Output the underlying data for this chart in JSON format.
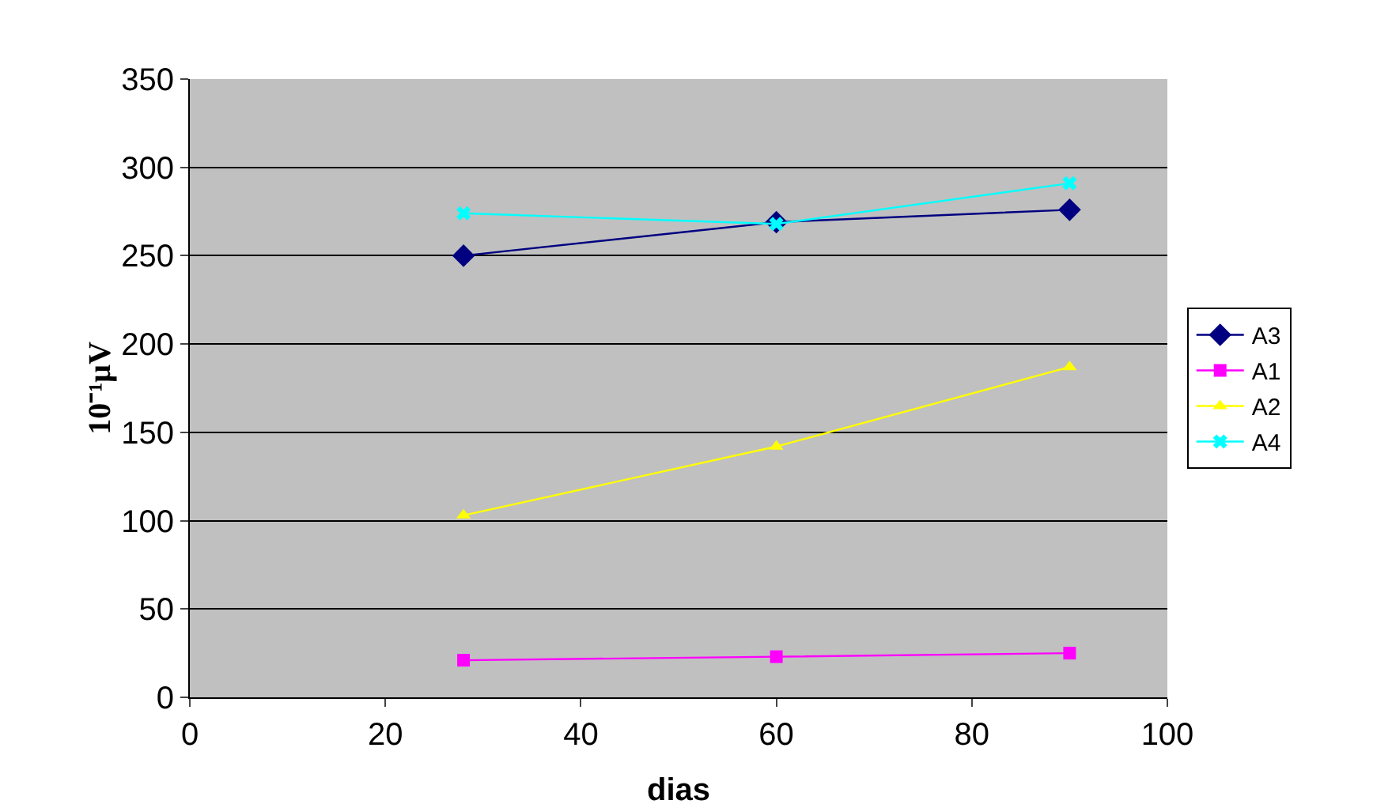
{
  "chart_data": {
    "type": "line",
    "xlabel": "dias",
    "ylabel": "10⁻¹μV",
    "xlim": [
      0,
      100
    ],
    "xticks": [
      0,
      20,
      40,
      60,
      80,
      100
    ],
    "ylim": [
      0,
      350
    ],
    "yticks": [
      0,
      50,
      100,
      150,
      200,
      250,
      300,
      350
    ],
    "grid": "y",
    "legend": "right",
    "series": [
      {
        "name": "A3",
        "color": "#000080",
        "marker": "diamond",
        "x": [
          28,
          60,
          90
        ],
        "values": [
          250,
          269,
          276
        ]
      },
      {
        "name": "A1",
        "color": "#ff00ff",
        "marker": "square",
        "x": [
          28,
          60,
          90
        ],
        "values": [
          21,
          23,
          25
        ]
      },
      {
        "name": "A2",
        "color": "#ffff00",
        "marker": "triangle",
        "x": [
          28,
          60,
          90
        ],
        "values": [
          103,
          142,
          187
        ]
      },
      {
        "name": "A4",
        "color": "#00ffff",
        "marker": "cross",
        "x": [
          28,
          60,
          90
        ],
        "values": [
          274,
          268,
          291
        ]
      }
    ]
  }
}
